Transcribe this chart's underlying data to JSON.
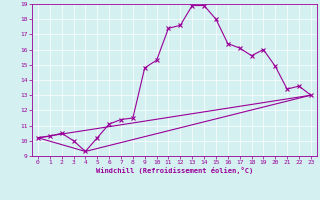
{
  "xlabel": "Windchill (Refroidissement éolien,°C)",
  "background_color": "#d4f0f0",
  "line_color": "#990099",
  "grid_color": "#ffffff",
  "xlim": [
    -0.5,
    23.5
  ],
  "ylim": [
    9,
    19
  ],
  "xticks": [
    0,
    1,
    2,
    3,
    4,
    5,
    6,
    7,
    8,
    9,
    10,
    11,
    12,
    13,
    14,
    15,
    16,
    17,
    18,
    19,
    20,
    21,
    22,
    23
  ],
  "yticks": [
    9,
    10,
    11,
    12,
    13,
    14,
    15,
    16,
    17,
    18,
    19
  ],
  "line1_x": [
    0,
    1,
    2,
    3,
    4,
    5,
    6,
    7,
    8,
    9,
    10,
    11,
    12,
    13,
    14,
    15,
    16,
    17,
    18,
    19,
    20,
    21,
    22,
    23
  ],
  "line1_y": [
    10.2,
    10.3,
    10.5,
    10.0,
    9.3,
    10.2,
    11.1,
    11.4,
    11.5,
    14.8,
    15.3,
    17.4,
    17.6,
    18.9,
    18.9,
    18.0,
    16.4,
    16.1,
    15.6,
    16.0,
    14.9,
    13.4,
    13.6,
    13.0
  ],
  "line2_x": [
    0,
    23
  ],
  "line2_y": [
    10.2,
    13.0
  ],
  "line3_x": [
    0,
    4,
    23
  ],
  "line3_y": [
    10.2,
    9.3,
    13.0
  ],
  "marker": "x",
  "markersize": 2.5,
  "linewidth": 0.8
}
